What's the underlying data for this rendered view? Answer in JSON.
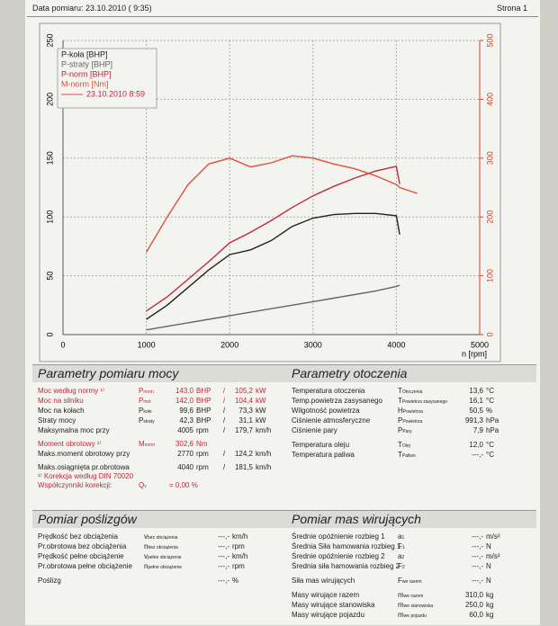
{
  "header": {
    "date": "Data pomiaru: 23.10.2010 ( 9:35)",
    "page": "Strona 1"
  },
  "chart_data": {
    "type": "line",
    "x_label": "n [rpm]",
    "run_label": "23.10.2010 8:59",
    "x": [
      1000,
      1250,
      1500,
      1750,
      2000,
      2250,
      2500,
      2750,
      3000,
      3250,
      3500,
      3750,
      4000,
      4040,
      4250
    ],
    "series": [
      {
        "name": "P-koła [BHP]",
        "color": "#222222",
        "values": [
          13,
          25,
          40,
          55,
          68,
          72,
          80,
          92,
          99,
          102,
          103,
          103,
          101,
          85,
          null
        ]
      },
      {
        "name": "P-straty [BHP]",
        "color": "#666666",
        "values": [
          4,
          7,
          10,
          13,
          16,
          19,
          22,
          25,
          28,
          31,
          34,
          37,
          41,
          42,
          null
        ]
      },
      {
        "name": "P-norm [BHP]",
        "color": "#c0283a",
        "values": [
          20,
          32,
          47,
          62,
          78,
          87,
          97,
          108,
          118,
          126,
          133,
          139,
          143,
          128,
          null
        ]
      },
      {
        "name": "M-norm [Nm]",
        "color": "#e0503c",
        "axis": "y2",
        "values": [
          140,
          200,
          255,
          290,
          300,
          285,
          292,
          304,
          300,
          290,
          282,
          270,
          255,
          250,
          240
        ]
      }
    ],
    "xlim": [
      0,
      5000
    ],
    "xticks": [
      0,
      1000,
      2000,
      3000,
      4000,
      5000
    ],
    "ylim": [
      0,
      250
    ],
    "yticks": [
      0,
      50,
      100,
      150,
      200,
      250
    ],
    "y2lim": [
      0,
      500
    ],
    "y2ticks": [
      0,
      100,
      200,
      300,
      400,
      500
    ],
    "y2_color": "#d04030",
    "grid": true
  },
  "sections": [
    {
      "title": "Parametry pomiaru mocy",
      "kind": "power",
      "groups": [
        [
          {
            "label": "Moc według normy ¹⁾",
            "symbol": {
              "main": "P",
              "sub": "norm"
            },
            "value": "143,0",
            "unit": "BHP",
            "sep": "/",
            "value2": "105,2",
            "unit2": "kW",
            "color": "#c0283a"
          },
          {
            "label": "Moc na silniku",
            "symbol": {
              "main": "P",
              "sub": "mot"
            },
            "value": "142,0",
            "unit": "BHP",
            "sep": "/",
            "value2": "104,4",
            "unit2": "kW",
            "color": "#c0283a"
          },
          {
            "label": "Moc na kołach",
            "symbol": {
              "main": "P",
              "sub": "koło"
            },
            "value": "99,6",
            "unit": "BHP",
            "sep": "/",
            "value2": "73,3",
            "unit2": "kW"
          },
          {
            "label": "Straty mocy",
            "symbol": {
              "main": "P",
              "sub": "straty"
            },
            "value": "42,3",
            "unit": "BHP",
            "sep": "/",
            "value2": "31,1",
            "unit2": "kW"
          },
          {
            "label": "Maksymalna moc przy",
            "value": "4005",
            "unit": "rpm",
            "sep": "/",
            "value2": "179,7",
            "unit2": "km/h"
          }
        ],
        [
          {
            "label": "Moment obrotowy ¹⁾",
            "symbol": {
              "main": "M",
              "sub": "norm"
            },
            "value": "302,6",
            "unit": "Nm",
            "color": "#c0283a"
          },
          {
            "label": "Maks.moment obrotowy przy",
            "value": "2770",
            "unit": "rpm",
            "sep": "/",
            "value2": "124,2",
            "unit2": "km/h"
          }
        ],
        [
          {
            "label": "Maks.osiągnięta pr.obrotowa",
            "value": "4040",
            "unit": "rpm",
            "sep": "/",
            "value2": "181,5",
            "unit2": "km/h"
          },
          {
            "label": "¹⁾ Korekcja według DIN 70020",
            "color": "#c0283a"
          },
          {
            "label": "Współczynniki korekcji:",
            "symbol": {
              "main": "Q",
              "sub": "v"
            },
            "value": "= 0,00 %",
            "color": "#c0283a"
          }
        ]
      ]
    },
    {
      "title": "Parametry otoczenia",
      "kind": "env",
      "groups": [
        [
          {
            "label": "Temperatura otoczenia",
            "symbol": {
              "main": "T",
              "sub": "Otoczenia"
            },
            "value": "13,6",
            "unit": "°C"
          },
          {
            "label": "Temp.powietrza zasysanego",
            "symbol": {
              "main": "T",
              "sub": "Powietrza zasysanego"
            },
            "value": "16,1",
            "unit": "°C"
          },
          {
            "label": "Wilgotność powietrza",
            "symbol": {
              "main": "H",
              "sub": "Powietrza"
            },
            "value": "50,5",
            "unit": "%"
          },
          {
            "label": "Ciśnienie atmosferyczne",
            "symbol": {
              "main": "P",
              "sub": "Powietrza"
            },
            "value": "991,3",
            "unit": "hPa"
          },
          {
            "label": "Ciśnienie pary",
            "symbol": {
              "main": "P",
              "sub": "Pary"
            },
            "value": "7,9",
            "unit": "hPa"
          }
        ],
        [
          {
            "label": "Temperatura oleju",
            "symbol": {
              "main": "T",
              "sub": "Olej"
            },
            "value": "12,0",
            "unit": "°C"
          },
          {
            "label": "Temperatura paliwa",
            "symbol": {
              "main": "T",
              "sub": "Paliwo"
            },
            "value": "---,-",
            "unit": "°C"
          }
        ]
      ]
    },
    {
      "title": "Pomiar poślizgów",
      "kind": "env",
      "groups": [
        [
          {
            "label": "Prędkość bez obciążenia",
            "symbol": {
              "main": "v",
              "sub": "bez obciążenia"
            },
            "value": "---,-",
            "unit": "km/h"
          },
          {
            "label": "Pr.obrotowa bez obciążenia",
            "symbol": {
              "main": "n",
              "sub": "bez obciążenia"
            },
            "value": "---,-",
            "unit": "rpm"
          },
          {
            "label": "Prędkość pełne obciążenie",
            "symbol": {
              "main": "v",
              "sub": "pełne obciążenie"
            },
            "value": "---,-",
            "unit": "km/h"
          },
          {
            "label": "Pr.obrotowa pełne obciążenie",
            "symbol": {
              "main": "n",
              "sub": "pełne obciążenie"
            },
            "value": "---,-",
            "unit": "rpm"
          }
        ],
        [
          {
            "label": "Poślizg",
            "value": "---,-",
            "unit": "%"
          }
        ]
      ]
    },
    {
      "title": "Pomiar mas wirujących",
      "kind": "env",
      "groups": [
        [
          {
            "label": "Średnie opóźnienie rozbieg 1",
            "symbol": {
              "main": "a",
              "sub": "1"
            },
            "value": "---,-",
            "unit": "m/s²"
          },
          {
            "label": "Średnia Siła hamowania rozbieg 1",
            "symbol": {
              "main": "F",
              "sub": "1"
            },
            "value": "---,-",
            "unit": "N"
          },
          {
            "label": "Średnie opóźnienie rozbieg 2",
            "symbol": {
              "main": "a",
              "sub": "2"
            },
            "value": "---,-",
            "unit": "m/s²"
          },
          {
            "label": "Średnia siła hamowania rozbieg 2",
            "symbol": {
              "main": "F",
              "sub": "2"
            },
            "value": "---,-",
            "unit": "N"
          }
        ],
        [
          {
            "label": "Siła mas wirujących",
            "symbol": {
              "main": "F",
              "sub": "we razem"
            },
            "value": "---,-",
            "unit": "N"
          }
        ],
        [
          {
            "label": "Masy wirujące razem",
            "symbol": {
              "main": "m",
              "sub": "we razem"
            },
            "value": "310,0",
            "unit": "kg"
          },
          {
            "label": "Masy wirujące stanowiska",
            "symbol": {
              "main": "m",
              "sub": "we stanowiska"
            },
            "value": "250,0",
            "unit": "kg"
          },
          {
            "label": "Masy wirujące pojazdu",
            "symbol": {
              "main": "m",
              "sub": "we pojazdu"
            },
            "value": "60,0",
            "unit": "kg"
          }
        ]
      ]
    }
  ]
}
